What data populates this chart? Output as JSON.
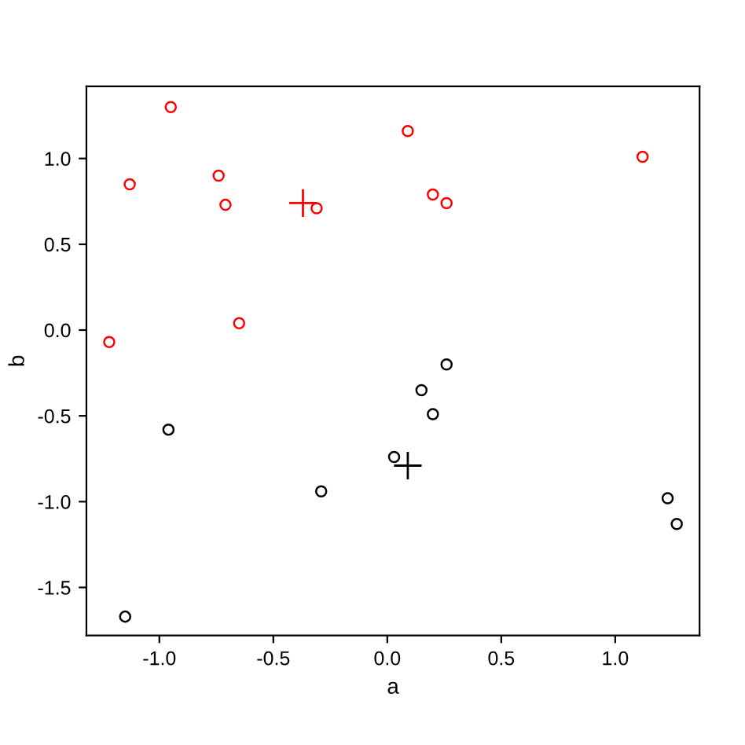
{
  "chart_data": {
    "type": "scatter",
    "xlabel": "a",
    "ylabel": "b",
    "xlim": [
      -1.32,
      1.37
    ],
    "ylim": [
      -1.78,
      1.42
    ],
    "xticks": [
      {
        "value": -1,
        "label": "-1.0"
      },
      -0.5,
      {
        "value": 0,
        "label": "0.0"
      },
      0.5,
      {
        "value": 1,
        "label": "1.0"
      }
    ],
    "yticks": [
      -1.5,
      {
        "value": -1,
        "label": "-1.0"
      },
      -0.5,
      {
        "value": 0,
        "label": "0.0"
      },
      0.5,
      {
        "value": 1,
        "label": "1.0"
      }
    ],
    "series": [
      {
        "color": "#ff0000",
        "marker": "circle",
        "x": [
          -0.95,
          -1.13,
          -0.74,
          -0.71,
          -0.31,
          0.09,
          0.2,
          0.26,
          1.12,
          -1.22,
          -0.65
        ],
        "values": [
          1.3,
          0.85,
          0.9,
          0.73,
          0.71,
          1.16,
          0.79,
          0.74,
          1.01,
          -0.07,
          0.04
        ]
      },
      {
        "color": "#000000",
        "marker": "circle",
        "x": [
          0.26,
          0.15,
          0.2,
          -0.96,
          0.03,
          -0.29,
          1.23,
          1.27,
          -1.15
        ],
        "values": [
          -0.2,
          -0.35,
          -0.49,
          -0.58,
          -0.74,
          -0.94,
          -0.98,
          -1.13,
          -1.67
        ]
      },
      {
        "color": "#ff0000",
        "marker": "cross",
        "x": [
          -0.37
        ],
        "values": [
          0.74
        ]
      },
      {
        "color": "#000000",
        "marker": "cross",
        "x": [
          0.09
        ],
        "values": [
          -0.79
        ]
      }
    ]
  }
}
